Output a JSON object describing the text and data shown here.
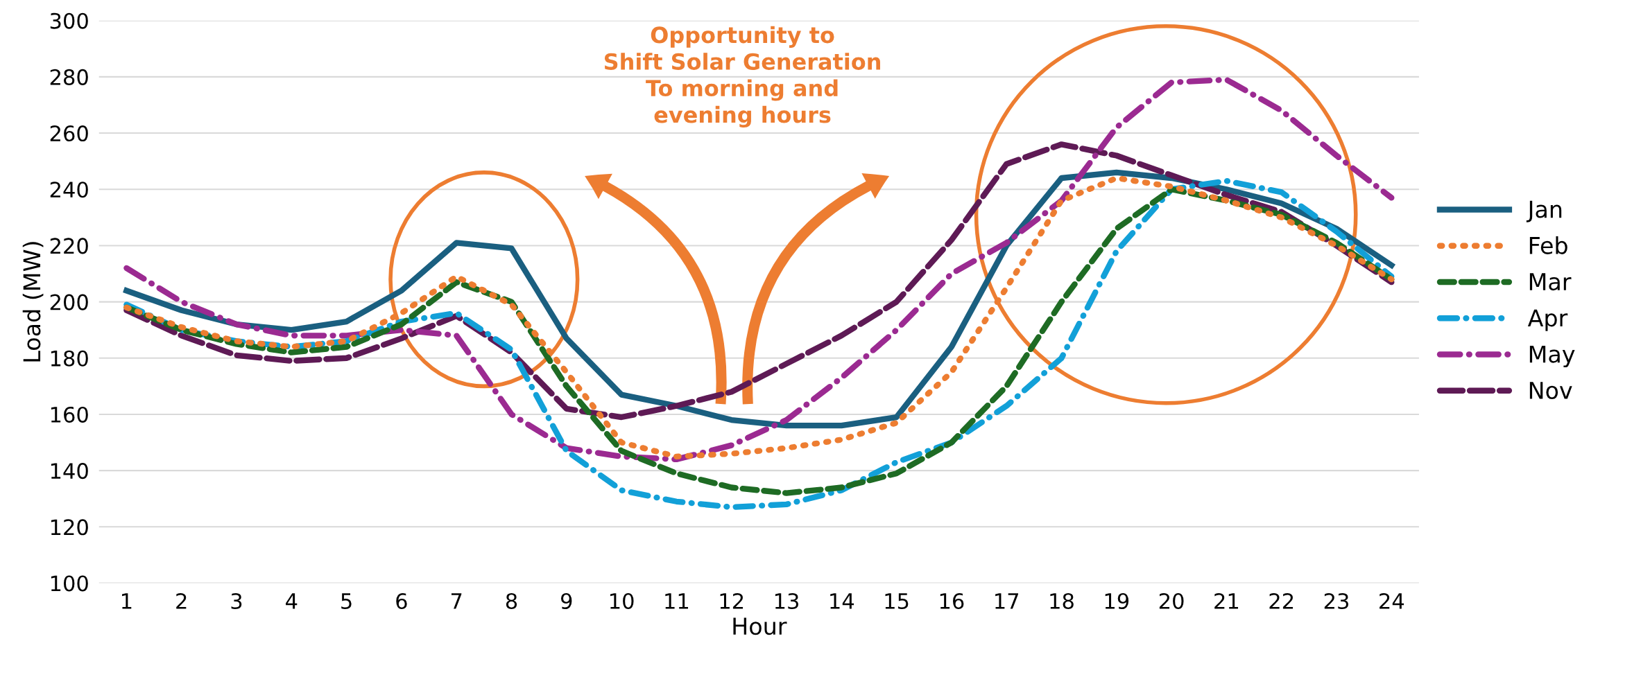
{
  "chart_data": {
    "type": "line",
    "xlabel": "Hour",
    "ylabel": "Load (MW)",
    "categories": [
      "1",
      "2",
      "3",
      "4",
      "5",
      "6",
      "7",
      "8",
      "9",
      "10",
      "11",
      "12",
      "13",
      "14",
      "15",
      "16",
      "17",
      "18",
      "19",
      "20",
      "21",
      "22",
      "23",
      "24"
    ],
    "series": [
      {
        "name": "Jan",
        "color": "#1a5f80",
        "line_style": "solid",
        "values": [
          204,
          197,
          192,
          190,
          193,
          204,
          221,
          219,
          187,
          167,
          163,
          158,
          156,
          156,
          159,
          184,
          220,
          244,
          246,
          244,
          240,
          235,
          226,
          213
        ]
      },
      {
        "name": "Feb",
        "color": "#ed7d31",
        "line_style": "dotted",
        "values": [
          198,
          191,
          186,
          184,
          186,
          196,
          209,
          199,
          175,
          150,
          145,
          146,
          148,
          151,
          157,
          175,
          205,
          236,
          244,
          241,
          236,
          230,
          220,
          208
        ]
      },
      {
        "name": "Mar",
        "color": "#1e6b24",
        "line_style": "dashed",
        "values": [
          198,
          190,
          185,
          182,
          184,
          192,
          207,
          200,
          170,
          147,
          139,
          134,
          132,
          134,
          139,
          150,
          170,
          200,
          226,
          240,
          236,
          231,
          221,
          208
        ]
      },
      {
        "name": "Apr",
        "color": "#12a0d8",
        "line_style": "dashed",
        "values": [
          199,
          190,
          186,
          184,
          186,
          193,
          196,
          183,
          147,
          133,
          129,
          127,
          128,
          133,
          143,
          150,
          163,
          180,
          218,
          240,
          243,
          239,
          225,
          209
        ]
      },
      {
        "name": "May",
        "color": "#9b2a91",
        "line_style": "dashed",
        "values": [
          212,
          200,
          192,
          188,
          188,
          190,
          188,
          160,
          148,
          145,
          144,
          149,
          158,
          173,
          190,
          210,
          221,
          236,
          262,
          278,
          279,
          268,
          252,
          237
        ]
      },
      {
        "name": "Nov",
        "color": "#5e1a55",
        "line_style": "dashed",
        "values": [
          197,
          188,
          181,
          179,
          180,
          187,
          195,
          182,
          162,
          159,
          163,
          168,
          178,
          188,
          200,
          222,
          249,
          256,
          252,
          245,
          238,
          232,
          220,
          207
        ]
      }
    ],
    "ylim": [
      100,
      300
    ],
    "yticks": [
      100,
      120,
      140,
      160,
      180,
      200,
      220,
      240,
      260,
      280,
      300
    ],
    "grid": "y",
    "legend": "right",
    "annotations": [
      "Opportunity to\nShift Solar Generation\nTo morning and\nevening hours"
    ]
  }
}
